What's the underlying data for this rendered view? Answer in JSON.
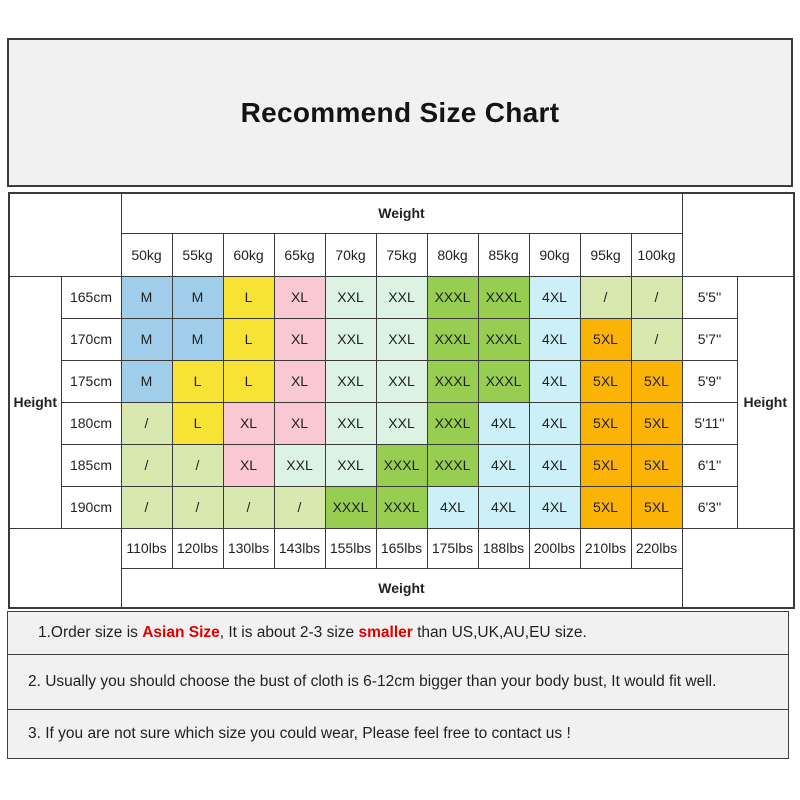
{
  "title": "Recommend Size Chart",
  "table": {
    "weight_label": "Weight",
    "height_label": "Height",
    "weights_kg": [
      "50kg",
      "55kg",
      "60kg",
      "65kg",
      "70kg",
      "75kg",
      "80kg",
      "85kg",
      "90kg",
      "95kg",
      "100kg"
    ],
    "weights_lbs": [
      "110lbs",
      "120lbs",
      "130lbs",
      "143lbs",
      "155lbs",
      "165lbs",
      "175lbs",
      "188lbs",
      "200lbs",
      "210lbs",
      "220lbs"
    ],
    "rows": [
      {
        "height_cm": "165cm",
        "height_ftin": "5'5''",
        "sizes": [
          "M",
          "M",
          "L",
          "XL",
          "XXL",
          "XXL",
          "XXXL",
          "XXXL",
          "4XL",
          "/",
          "/"
        ]
      },
      {
        "height_cm": "170cm",
        "height_ftin": "5'7''",
        "sizes": [
          "M",
          "M",
          "L",
          "XL",
          "XXL",
          "XXL",
          "XXXL",
          "XXXL",
          "4XL",
          "5XL",
          "/"
        ]
      },
      {
        "height_cm": "175cm",
        "height_ftin": "5'9''",
        "sizes": [
          "M",
          "L",
          "L",
          "XL",
          "XXL",
          "XXL",
          "XXXL",
          "XXXL",
          "4XL",
          "5XL",
          "5XL"
        ]
      },
      {
        "height_cm": "180cm",
        "height_ftin": "5'11''",
        "sizes": [
          "/",
          "L",
          "XL",
          "XL",
          "XXL",
          "XXL",
          "XXXL",
          "4XL",
          "4XL",
          "5XL",
          "5XL"
        ]
      },
      {
        "height_cm": "185cm",
        "height_ftin": "6'1''",
        "sizes": [
          "/",
          "/",
          "XL",
          "XXL",
          "XXL",
          "XXXL",
          "XXXL",
          "4XL",
          "4XL",
          "5XL",
          "5XL"
        ]
      },
      {
        "height_cm": "190cm",
        "height_ftin": "6'3''",
        "sizes": [
          "/",
          "/",
          "/",
          "/",
          "XXXL",
          "XXXL",
          "4XL",
          "4XL",
          "4XL",
          "5XL",
          "5XL"
        ]
      }
    ]
  },
  "size_colors": {
    "M": "#9fcdea",
    "L": "#f8e334",
    "XL": "#f9c8d3",
    "XXL": "#dcf3e4",
    "XXXL": "#97cd51",
    "4XL": "#cbf0f7",
    "5XL": "#fbb405",
    "/": "#d8e8af"
  },
  "accent_colors": {
    "border": "#3a3a3a",
    "panel_bg": "#f1f1f1",
    "note_red": "#e00000"
  },
  "notes": [
    {
      "segments": [
        {
          "text": "1.Order size is "
        },
        {
          "text": "Asian Size",
          "red": true
        },
        {
          "text": ", It is about 2-3 size "
        },
        {
          "text": "smaller",
          "red": true
        },
        {
          "text": " than US,UK,AU,EU size."
        }
      ]
    },
    {
      "segments": [
        {
          "text": "2. Usually you should choose the bust of cloth is 6-12cm bigger than your body bust, It would fit well."
        }
      ]
    },
    {
      "segments": [
        {
          "text": "3. If you are not sure which size you could wear, Please feel free to contact us !"
        }
      ]
    }
  ],
  "chart_data": {
    "type": "table",
    "title": "Recommend Size Chart",
    "x_axis_label": "Weight",
    "y_axis_label": "Height",
    "columns_weight_kg": [
      50,
      55,
      60,
      65,
      70,
      75,
      80,
      85,
      90,
      95,
      100
    ],
    "columns_weight_lbs": [
      110,
      120,
      130,
      143,
      155,
      165,
      175,
      188,
      200,
      210,
      220
    ],
    "rows_height_cm": [
      165,
      170,
      175,
      180,
      185,
      190
    ],
    "rows_height_ftin": [
      "5'5''",
      "5'7''",
      "5'9''",
      "5'11''",
      "6'1''",
      "6'3''"
    ],
    "matrix": [
      [
        "M",
        "M",
        "L",
        "XL",
        "XXL",
        "XXL",
        "XXXL",
        "XXXL",
        "4XL",
        "/",
        "/"
      ],
      [
        "M",
        "M",
        "L",
        "XL",
        "XXL",
        "XXL",
        "XXXL",
        "XXXL",
        "4XL",
        "5XL",
        "/"
      ],
      [
        "M",
        "L",
        "L",
        "XL",
        "XXL",
        "XXL",
        "XXXL",
        "XXXL",
        "4XL",
        "5XL",
        "5XL"
      ],
      [
        "/",
        "L",
        "XL",
        "XL",
        "XXL",
        "XXL",
        "XXXL",
        "4XL",
        "4XL",
        "5XL",
        "5XL"
      ],
      [
        "/",
        "/",
        "XL",
        "XXL",
        "XXL",
        "XXXL",
        "XXXL",
        "4XL",
        "4XL",
        "5XL",
        "5XL"
      ],
      [
        "/",
        "/",
        "/",
        "/",
        "XXXL",
        "XXXL",
        "4XL",
        "4XL",
        "4XL",
        "5XL",
        "5XL"
      ]
    ],
    "legend": "cell color encodes size: M=blue, L=yellow, XL=pink, XXL=mint, XXXL=green, 4XL=cyan, 5XL=orange, /=not available (sage)"
  }
}
